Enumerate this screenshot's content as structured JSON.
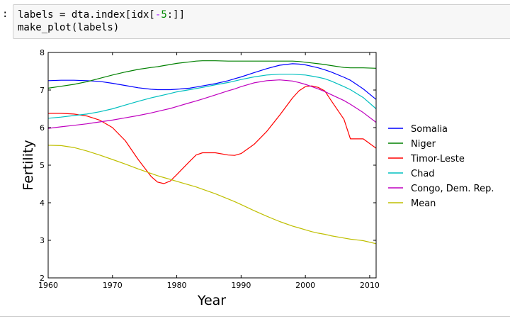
{
  "cell": {
    "prompt": ":",
    "code_line1_a": "labels = dta.index[idx[",
    "code_line1_op": "-",
    "code_line1_num": "5",
    "code_line1_b": ":]]",
    "code_line2": "make_plot(labels)"
  },
  "chart_data": {
    "type": "line",
    "title": "",
    "xlabel": "Year",
    "ylabel": "Fertility",
    "xlim": [
      1960,
      2011
    ],
    "ylim": [
      2,
      8
    ],
    "x_ticks": [
      1960,
      1970,
      1980,
      1990,
      2000,
      2010
    ],
    "y_ticks": [
      2,
      3,
      4,
      5,
      6,
      7,
      8
    ],
    "legend_position": "right",
    "x": [
      1960,
      1962,
      1964,
      1966,
      1968,
      1970,
      1972,
      1974,
      1976,
      1977,
      1978,
      1979,
      1980,
      1982,
      1983,
      1984,
      1986,
      1988,
      1989,
      1990,
      1992,
      1994,
      1996,
      1998,
      1999,
      2000,
      2001,
      2002,
      2003,
      2004,
      2006,
      2007,
      2009,
      2011
    ],
    "series": [
      {
        "name": "Somalia",
        "color": "#0000ff",
        "values": [
          7.25,
          7.26,
          7.26,
          7.25,
          7.23,
          7.18,
          7.12,
          7.06,
          7.02,
          7.01,
          7.01,
          7.01,
          7.02,
          7.05,
          7.08,
          7.11,
          7.17,
          7.25,
          7.3,
          7.35,
          7.46,
          7.57,
          7.66,
          7.7,
          7.69,
          7.67,
          7.63,
          7.59,
          7.54,
          7.48,
          7.34,
          7.26,
          7.03,
          6.75
        ]
      },
      {
        "name": "Niger",
        "color": "#008000",
        "values": [
          7.05,
          7.1,
          7.15,
          7.22,
          7.31,
          7.4,
          7.48,
          7.55,
          7.6,
          7.62,
          7.65,
          7.68,
          7.71,
          7.75,
          7.77,
          7.78,
          7.78,
          7.77,
          7.77,
          7.77,
          7.77,
          7.77,
          7.77,
          7.77,
          7.76,
          7.74,
          7.72,
          7.7,
          7.68,
          7.65,
          7.6,
          7.59,
          7.59,
          7.58
        ]
      },
      {
        "name": "Timor-Leste",
        "color": "#ff0000",
        "values": [
          6.38,
          6.38,
          6.36,
          6.31,
          6.2,
          6.0,
          5.65,
          5.15,
          4.7,
          4.55,
          4.51,
          4.58,
          4.75,
          5.1,
          5.27,
          5.33,
          5.33,
          5.27,
          5.26,
          5.31,
          5.55,
          5.9,
          6.33,
          6.79,
          6.98,
          7.09,
          7.11,
          7.07,
          6.98,
          6.72,
          6.22,
          5.7,
          5.7,
          5.45
        ]
      },
      {
        "name": "Chad",
        "color": "#00bfbf",
        "values": [
          6.25,
          6.28,
          6.32,
          6.36,
          6.42,
          6.5,
          6.6,
          6.7,
          6.79,
          6.83,
          6.87,
          6.91,
          6.95,
          7.01,
          7.04,
          7.07,
          7.14,
          7.2,
          7.24,
          7.28,
          7.35,
          7.4,
          7.42,
          7.42,
          7.41,
          7.4,
          7.37,
          7.34,
          7.3,
          7.24,
          7.09,
          7.01,
          6.8,
          6.5
        ]
      },
      {
        "name": "Congo, Dem. Rep.",
        "color": "#bf00bf",
        "values": [
          5.98,
          6.02,
          6.06,
          6.1,
          6.15,
          6.2,
          6.26,
          6.32,
          6.39,
          6.43,
          6.47,
          6.51,
          6.56,
          6.66,
          6.71,
          6.76,
          6.87,
          6.98,
          7.03,
          7.09,
          7.19,
          7.25,
          7.27,
          7.24,
          7.2,
          7.15,
          7.09,
          7.03,
          6.96,
          6.88,
          6.72,
          6.62,
          6.4,
          6.14
        ]
      },
      {
        "name": "Mean",
        "color": "#bfbf00",
        "values": [
          5.53,
          5.52,
          5.47,
          5.38,
          5.27,
          5.15,
          5.03,
          4.9,
          4.78,
          4.72,
          4.67,
          4.62,
          4.57,
          4.47,
          4.42,
          4.36,
          4.24,
          4.1,
          4.03,
          3.95,
          3.79,
          3.64,
          3.5,
          3.38,
          3.33,
          3.28,
          3.23,
          3.19,
          3.16,
          3.12,
          3.06,
          3.03,
          2.99,
          2.91
        ]
      }
    ]
  }
}
